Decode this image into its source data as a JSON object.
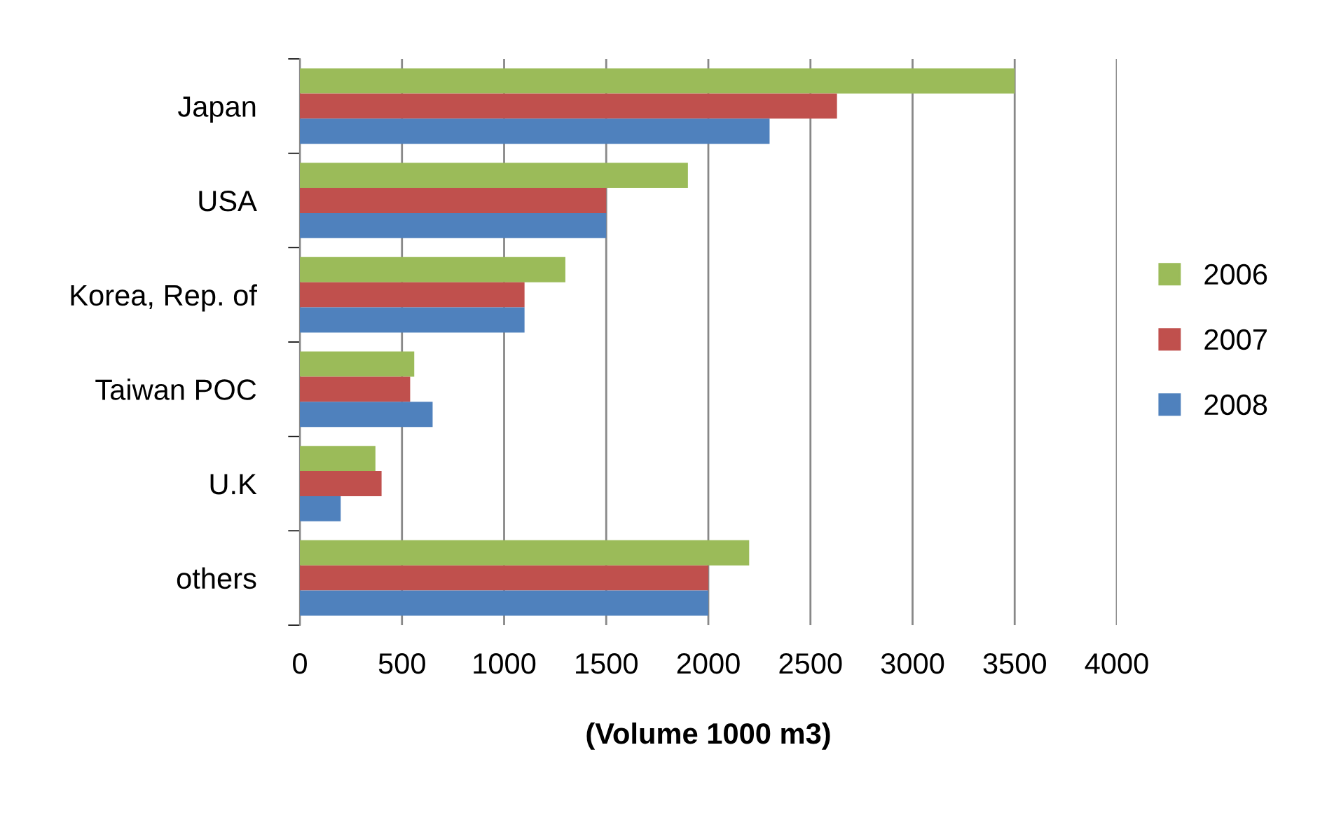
{
  "chart_data": {
    "type": "bar",
    "orientation": "horizontal",
    "xlabel": "(Volume 1000 m3)",
    "categories": [
      "Japan",
      "USA",
      "Korea, Rep. of",
      "Taiwan POC",
      "U.K",
      "others"
    ],
    "series": [
      {
        "name": "2006",
        "color": "#9bbb59",
        "values": [
          3500,
          1900,
          1300,
          560,
          370,
          2200
        ]
      },
      {
        "name": "2007",
        "color": "#c0504d",
        "values": [
          2630,
          1500,
          1100,
          540,
          400,
          2000
        ]
      },
      {
        "name": "2008",
        "color": "#4f81bd",
        "values": [
          2300,
          1500,
          1100,
          650,
          200,
          2000
        ]
      }
    ],
    "xlim": [
      0,
      4000
    ],
    "xticks": [
      0,
      500,
      1000,
      1500,
      2000,
      2500,
      3000,
      3500,
      4000
    ],
    "grid": "x",
    "legend": "right"
  }
}
